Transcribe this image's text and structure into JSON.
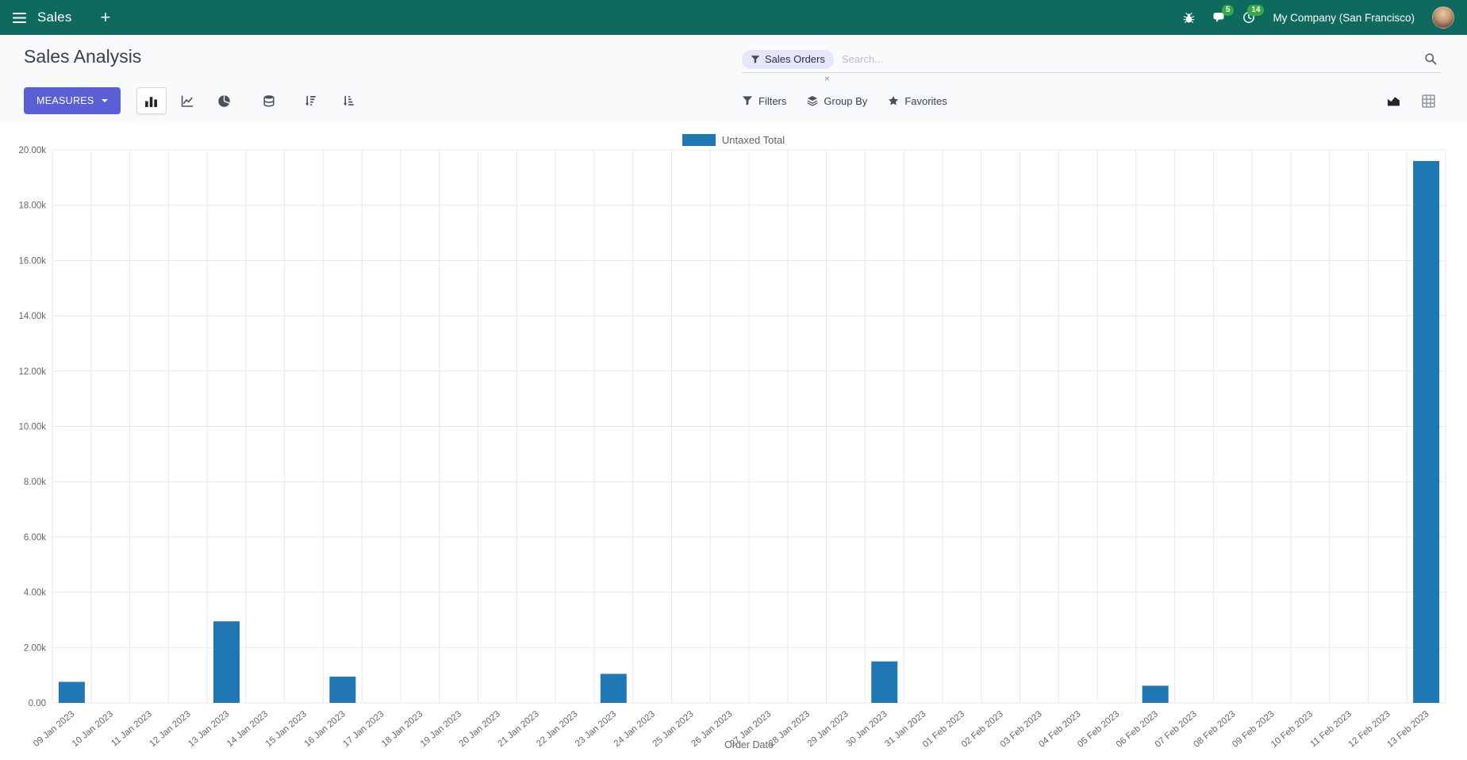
{
  "colors": {
    "navbar_bg": "#0e695f",
    "primary_button": "#5b5fd6",
    "badge_green": "#38a745"
  },
  "navbar": {
    "brand": "Sales",
    "plus": "+",
    "company": "My Company (San Francisco)",
    "badges": {
      "messages": "5",
      "activities": "14"
    }
  },
  "control_panel": {
    "title": "Sales Analysis",
    "search": {
      "facet_label": "Sales Orders",
      "facet_remove": "×",
      "placeholder": "Search..."
    },
    "toolbar": {
      "measures": "MEASURES",
      "filters": "Filters",
      "group_by": "Group By",
      "favorites": "Favorites"
    }
  },
  "chart_data": {
    "type": "bar",
    "title": "",
    "legend": [
      "Untaxed Total"
    ],
    "legend_position": "top",
    "series_color": "#1f77b4",
    "xlabel": "Order Date",
    "ylabel": "",
    "ylim": [
      0,
      20000
    ],
    "grid": true,
    "yticks": [
      {
        "value": 0,
        "label": "0.00"
      },
      {
        "value": 2000,
        "label": "2.00k"
      },
      {
        "value": 4000,
        "label": "4.00k"
      },
      {
        "value": 6000,
        "label": "6.00k"
      },
      {
        "value": 8000,
        "label": "8.00k"
      },
      {
        "value": 10000,
        "label": "10.00k"
      },
      {
        "value": 12000,
        "label": "12.00k"
      },
      {
        "value": 14000,
        "label": "14.00k"
      },
      {
        "value": 16000,
        "label": "16.00k"
      },
      {
        "value": 18000,
        "label": "18.00k"
      },
      {
        "value": 20000,
        "label": "20.00k"
      }
    ],
    "categories": [
      "09 Jan 2023",
      "10 Jan 2023",
      "11 Jan 2023",
      "12 Jan 2023",
      "13 Jan 2023",
      "14 Jan 2023",
      "15 Jan 2023",
      "16 Jan 2023",
      "17 Jan 2023",
      "18 Jan 2023",
      "19 Jan 2023",
      "20 Jan 2023",
      "21 Jan 2023",
      "22 Jan 2023",
      "23 Jan 2023",
      "24 Jan 2023",
      "25 Jan 2023",
      "26 Jan 2023",
      "27 Jan 2023",
      "28 Jan 2023",
      "29 Jan 2023",
      "30 Jan 2023",
      "31 Jan 2023",
      "01 Feb 2023",
      "02 Feb 2023",
      "03 Feb 2023",
      "04 Feb 2023",
      "05 Feb 2023",
      "06 Feb 2023",
      "07 Feb 2023",
      "08 Feb 2023",
      "09 Feb 2023",
      "10 Feb 2023",
      "11 Feb 2023",
      "12 Feb 2023",
      "13 Feb 2023"
    ],
    "series": [
      {
        "name": "Untaxed Total",
        "values": [
          760,
          0,
          0,
          0,
          2950,
          0,
          0,
          950,
          0,
          0,
          0,
          0,
          0,
          0,
          1050,
          0,
          0,
          0,
          0,
          0,
          0,
          1500,
          0,
          0,
          0,
          0,
          0,
          0,
          620,
          0,
          0,
          0,
          0,
          0,
          0,
          19600
        ]
      }
    ]
  }
}
